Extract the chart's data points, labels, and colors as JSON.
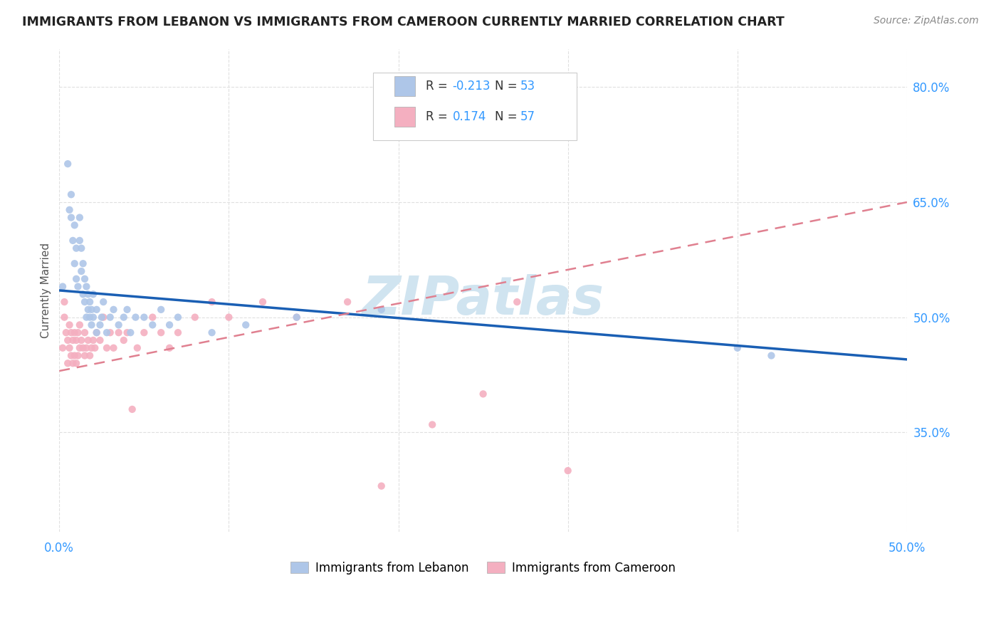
{
  "title": "IMMIGRANTS FROM LEBANON VS IMMIGRANTS FROM CAMEROON CURRENTLY MARRIED CORRELATION CHART",
  "source": "Source: ZipAtlas.com",
  "ylabel": "Currently Married",
  "xlim": [
    0.0,
    0.5
  ],
  "ylim": [
    0.22,
    0.85
  ],
  "ytick_positions": [
    0.35,
    0.5,
    0.65,
    0.8
  ],
  "ytick_labels": [
    "35.0%",
    "50.0%",
    "65.0%",
    "80.0%"
  ],
  "xtick_positions": [
    0.0,
    0.1,
    0.2,
    0.3,
    0.4,
    0.5
  ],
  "xtick_labels": [
    "0.0%",
    "",
    "",
    "",
    "",
    "50.0%"
  ],
  "background_color": "#ffffff",
  "grid_color": "#e0e0e0",
  "title_color": "#222222",
  "source_color": "#888888",
  "watermark": "ZIPatlas",
  "watermark_color": "#d0e4f0",
  "lebanon_color": "#aec6e8",
  "cameroon_color": "#f4afc0",
  "lebanon_line_color": "#1a5fb4",
  "cameroon_line_color": "#e08090",
  "lebanon_x": [
    0.002,
    0.005,
    0.006,
    0.007,
    0.007,
    0.008,
    0.009,
    0.009,
    0.01,
    0.01,
    0.011,
    0.012,
    0.012,
    0.013,
    0.013,
    0.014,
    0.014,
    0.015,
    0.015,
    0.016,
    0.016,
    0.017,
    0.017,
    0.018,
    0.018,
    0.019,
    0.019,
    0.02,
    0.02,
    0.022,
    0.022,
    0.024,
    0.025,
    0.026,
    0.028,
    0.03,
    0.032,
    0.035,
    0.038,
    0.04,
    0.042,
    0.045,
    0.05,
    0.055,
    0.06,
    0.065,
    0.07,
    0.09,
    0.11,
    0.14,
    0.19,
    0.4,
    0.42
  ],
  "lebanon_y": [
    0.54,
    0.7,
    0.64,
    0.63,
    0.66,
    0.6,
    0.62,
    0.57,
    0.55,
    0.59,
    0.54,
    0.6,
    0.63,
    0.56,
    0.59,
    0.53,
    0.57,
    0.52,
    0.55,
    0.5,
    0.54,
    0.51,
    0.53,
    0.5,
    0.52,
    0.49,
    0.51,
    0.5,
    0.53,
    0.48,
    0.51,
    0.49,
    0.5,
    0.52,
    0.48,
    0.5,
    0.51,
    0.49,
    0.5,
    0.51,
    0.48,
    0.5,
    0.5,
    0.49,
    0.51,
    0.49,
    0.5,
    0.48,
    0.49,
    0.5,
    0.51,
    0.46,
    0.45
  ],
  "cameroon_x": [
    0.002,
    0.003,
    0.003,
    0.004,
    0.005,
    0.005,
    0.006,
    0.006,
    0.007,
    0.007,
    0.008,
    0.008,
    0.009,
    0.009,
    0.01,
    0.01,
    0.011,
    0.011,
    0.012,
    0.012,
    0.013,
    0.014,
    0.015,
    0.015,
    0.016,
    0.017,
    0.018,
    0.019,
    0.02,
    0.021,
    0.022,
    0.024,
    0.026,
    0.028,
    0.03,
    0.032,
    0.035,
    0.038,
    0.04,
    0.043,
    0.046,
    0.05,
    0.055,
    0.06,
    0.065,
    0.07,
    0.08,
    0.09,
    0.1,
    0.12,
    0.14,
    0.17,
    0.19,
    0.22,
    0.25,
    0.27,
    0.3
  ],
  "cameroon_y": [
    0.46,
    0.5,
    0.52,
    0.48,
    0.44,
    0.47,
    0.46,
    0.49,
    0.45,
    0.48,
    0.44,
    0.47,
    0.45,
    0.48,
    0.44,
    0.47,
    0.45,
    0.48,
    0.46,
    0.49,
    0.47,
    0.46,
    0.45,
    0.48,
    0.46,
    0.47,
    0.45,
    0.46,
    0.47,
    0.46,
    0.48,
    0.47,
    0.5,
    0.46,
    0.48,
    0.46,
    0.48,
    0.47,
    0.48,
    0.38,
    0.46,
    0.48,
    0.5,
    0.48,
    0.46,
    0.48,
    0.5,
    0.52,
    0.5,
    0.52,
    0.5,
    0.52,
    0.28,
    0.36,
    0.4,
    0.52,
    0.3
  ],
  "legend_box_label1": [
    "R = ",
    "-0.213",
    "  N = ",
    "53"
  ],
  "legend_box_label2": [
    "R =  ",
    "0.174",
    "  N = ",
    "57"
  ],
  "legend_bottom_1": "Immigrants from Lebanon",
  "legend_bottom_2": "Immigrants from Cameroon"
}
